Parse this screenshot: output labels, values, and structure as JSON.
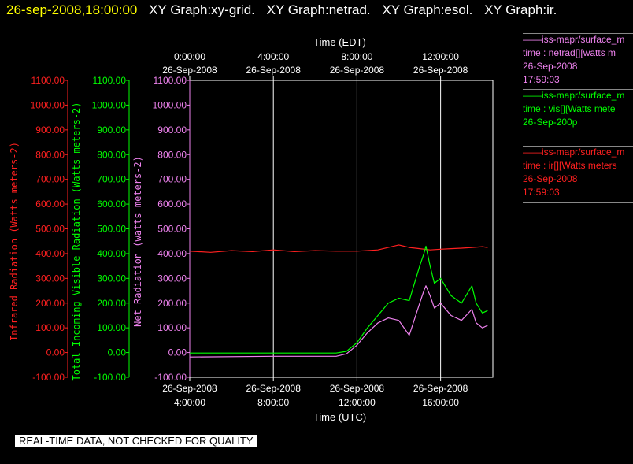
{
  "header": {
    "timestamp": "26-sep-2008,18:00:00",
    "graph_labels": [
      "XY Graph:xy-grid.",
      "XY Graph:netrad.",
      "XY Graph:esol.",
      "XY Graph:ir."
    ]
  },
  "legend": [
    {
      "line1": "——iss-mapr/surface_m",
      "line2": "time : netrad[][watts m",
      "line3": "26-Sep-2008",
      "line4": "17:59:03",
      "color": "#ee82ee"
    },
    {
      "line1": "——iss-mapr/surface_m",
      "line2": "time : vis[][Watts mete",
      "line3": "26-Sep-200p",
      "line4": "",
      "color": "#00ff00"
    },
    {
      "line1": "——iss-mapr/surface_m",
      "line2": "time : ir[][Watts meters",
      "line3": "26-Sep-2008",
      "line4": "17:59:03",
      "color": "#ff2020"
    }
  ],
  "banner": "REAL-TIME DATA, NOT CHECKED FOR QUALITY",
  "chart_data": {
    "type": "line",
    "xlabel_bottom": "Time (UTC)",
    "xlabel_top": "Time (EDT)",
    "x_ticks_bottom": [
      {
        "t": 4,
        "date": "26-Sep-2008",
        "time": "4:00:00"
      },
      {
        "t": 8,
        "date": "26-Sep-2008",
        "time": "8:00:00"
      },
      {
        "t": 12,
        "date": "26-Sep-2008",
        "time": "12:00:00"
      },
      {
        "t": 16,
        "date": "26-Sep-2008",
        "time": "16:00:00"
      }
    ],
    "x_ticks_top": [
      {
        "t": 4,
        "time": "0:00:00",
        "date": "26-Sep-2008"
      },
      {
        "t": 8,
        "time": "4:00:00",
        "date": "26-Sep-2008"
      },
      {
        "t": 12,
        "time": "8:00:00",
        "date": "26-Sep-2008"
      },
      {
        "t": 16,
        "time": "12:00:00",
        "date": "26-Sep-2008"
      }
    ],
    "xlim": [
      4,
      18.5
    ],
    "ylim": [
      -100,
      1100
    ],
    "y_ticks": [
      "-100.00",
      "0.00",
      "100.00",
      "200.00",
      "300.00",
      "400.00",
      "500.00",
      "600.00",
      "700.00",
      "800.00",
      "900.00",
      "1000.00",
      "1100.00"
    ],
    "y_axes": [
      {
        "label": "Infrared Radiation (Watts meters-2)",
        "color": "#ff2020"
      },
      {
        "label": "Total Incoming Visible Radiation (Watts meters-2)",
        "color": "#00ff00"
      },
      {
        "label": "Net Radiation (watts meters-2)",
        "color": "#ee82ee"
      }
    ],
    "grid": "vertical",
    "series": [
      {
        "name": "ir",
        "color": "#ff2020",
        "x": [
          4,
          5,
          6,
          7,
          8,
          9,
          10,
          11,
          12,
          13,
          13.5,
          14,
          14.5,
          15,
          15.5,
          16,
          16.5,
          17,
          17.5,
          18,
          18.25
        ],
        "y": [
          410,
          405,
          412,
          408,
          415,
          408,
          412,
          410,
          410,
          415,
          425,
          435,
          425,
          420,
          415,
          418,
          420,
          422,
          425,
          428,
          425
        ]
      },
      {
        "name": "vis",
        "color": "#00ff00",
        "x": [
          4,
          11,
          11.5,
          12,
          12.5,
          13,
          13.5,
          14,
          14.5,
          15,
          15.2,
          15.3,
          15.5,
          15.7,
          16,
          16.5,
          17,
          17.5,
          17.7,
          18,
          18.25
        ],
        "y": [
          -2,
          -2,
          5,
          40,
          100,
          150,
          200,
          220,
          210,
          350,
          400,
          430,
          350,
          280,
          300,
          230,
          200,
          270,
          200,
          160,
          170
        ]
      },
      {
        "name": "netrad",
        "color": "#ee82ee",
        "x": [
          4,
          8,
          11,
          11.5,
          12,
          12.5,
          13,
          13.5,
          14,
          14.5,
          15,
          15.2,
          15.3,
          15.5,
          15.7,
          16,
          16.5,
          17,
          17.5,
          17.7,
          18,
          18.25
        ],
        "y": [
          -18,
          -15,
          -15,
          -5,
          30,
          80,
          120,
          140,
          130,
          70,
          200,
          250,
          270,
          230,
          180,
          200,
          150,
          130,
          175,
          120,
          100,
          110
        ]
      }
    ]
  }
}
